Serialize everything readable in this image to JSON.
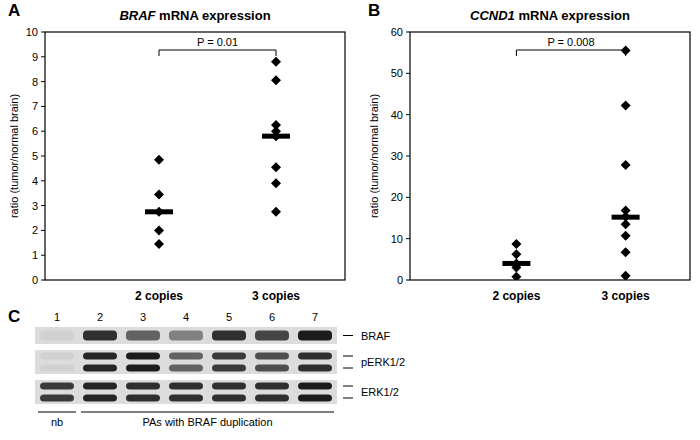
{
  "chart_data": [
    {
      "type": "scatter",
      "label": "A",
      "title": "BRAF mRNA expression",
      "y_label": "ratio (tumor/normal brain)",
      "categories": [
        "2 copies",
        "3 copies"
      ],
      "values": [
        [
          4.85,
          3.45,
          2.75,
          2.0,
          1.45
        ],
        [
          8.8,
          8.05,
          6.25,
          6.0,
          5.8,
          4.55,
          3.9,
          2.75
        ]
      ],
      "medians": [
        2.75,
        5.8
      ],
      "annotation": "P = 0.01",
      "color": "#000000",
      "marker": "diamond",
      "ylim": [
        0,
        10
      ],
      "yticks": [
        0,
        1,
        2,
        3,
        4,
        5,
        6,
        7,
        8,
        9,
        10
      ],
      "grid": false
    },
    {
      "type": "scatter",
      "label": "B",
      "title": "CCND1 mRNA expression",
      "y_label": "ratio (tumor/normal brain)",
      "categories": [
        "2 copies",
        "3 copies"
      ],
      "values": [
        [
          8.7,
          6.2,
          4.0,
          3.0,
          0.8
        ],
        [
          55.5,
          42.2,
          27.8,
          16.8,
          15.3,
          13.5,
          10.7,
          6.7,
          1.0
        ]
      ],
      "medians": [
        4.0,
        15.2
      ],
      "annotation": "P = 0.008",
      "color": "#000000",
      "marker": "diamond",
      "ylim": [
        0,
        60
      ],
      "yticks": [
        0,
        10,
        20,
        30,
        40,
        50,
        60
      ],
      "grid": false
    }
  ],
  "blot": {
    "label": "C",
    "lanes": [
      "1",
      "2",
      "3",
      "4",
      "5",
      "6",
      "7"
    ],
    "rows": [
      {
        "label": "BRAF",
        "bands": 1,
        "intensities": [
          0.05,
          0.85,
          0.6,
          0.45,
          0.85,
          0.75,
          0.95
        ]
      },
      {
        "label": "pERK1/2",
        "bands": 2,
        "intensities": [
          0.05,
          0.9,
          0.95,
          0.6,
          0.8,
          0.7,
          0.85
        ]
      },
      {
        "label": "ERK1/2",
        "bands": 2,
        "intensities": [
          0.8,
          0.9,
          0.85,
          0.85,
          0.85,
          0.85,
          0.95
        ]
      }
    ],
    "groups": [
      {
        "label": "nb",
        "lanes": [
          1,
          1
        ]
      },
      {
        "label": "PAs with BRAF duplication",
        "lanes": [
          2,
          7
        ]
      }
    ]
  }
}
